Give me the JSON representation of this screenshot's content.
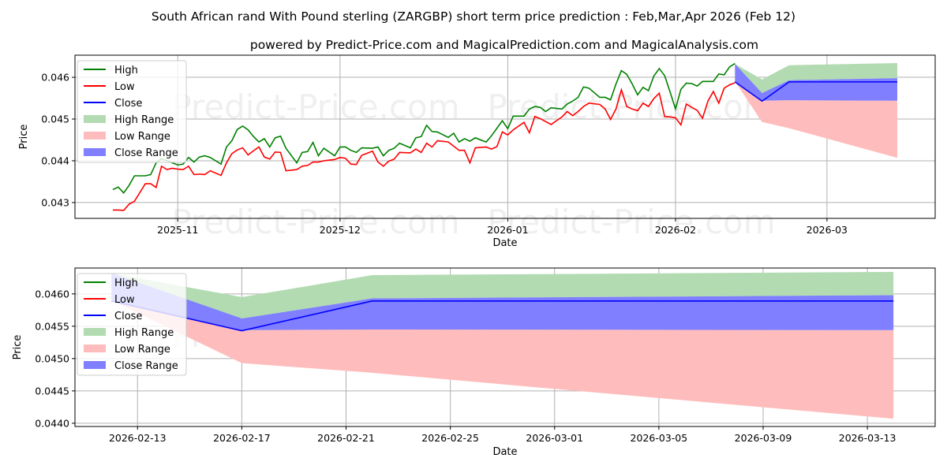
{
  "title": "South African rand With Pound sterling (ZARGBP) short term price prediction : Feb,Mar,Apr 2026 (Feb 12)",
  "subtitle": "powered by Predict-Price.com and MagicalPrediction.com and MagicalAnalysis.com",
  "watermark": "Predict-Price.com",
  "colors": {
    "high": "#008000",
    "low": "#ff0000",
    "close": "#0000ff",
    "high_range": "#b2dbb2",
    "low_range": "#ffbcbc",
    "close_range": "#7f7fff"
  },
  "legend": [
    "High",
    "Low",
    "Close",
    "High Range",
    "Low Range",
    "Close Range"
  ],
  "chart_data": [
    {
      "type": "line",
      "name": "overview",
      "xlabel": "Date",
      "ylabel": "Price",
      "x_unit": "days since 2025-10-20",
      "xlim": [
        -7,
        152
      ],
      "ylim": [
        0.04262,
        0.04653
      ],
      "grid": true,
      "legend_position": "top-left",
      "xticks": [
        {
          "x": 12,
          "label": "2025-11"
        },
        {
          "x": 42,
          "label": "2025-12"
        },
        {
          "x": 73,
          "label": "2026-01"
        },
        {
          "x": 104,
          "label": "2026-02"
        },
        {
          "x": 132,
          "label": "2026-03"
        }
      ],
      "yticks": [
        {
          "y": 0.043,
          "label": "0.043"
        },
        {
          "y": 0.044,
          "label": "0.044"
        },
        {
          "y": 0.045,
          "label": "0.045"
        },
        {
          "y": 0.046,
          "label": "0.046"
        }
      ]
    },
    {
      "type": "line",
      "name": "prediction-detail",
      "xlabel": "Date",
      "ylabel": "Price",
      "x_unit": "days since 2025-10-20",
      "xlim": [
        113.6,
        146.6
      ],
      "ylim": [
        0.04395,
        0.0464
      ],
      "grid": true,
      "legend_position": "top-left",
      "xticks": [
        {
          "x": 116,
          "label": "2026-02-13"
        },
        {
          "x": 120,
          "label": "2026-02-17"
        },
        {
          "x": 124,
          "label": "2026-02-21"
        },
        {
          "x": 128,
          "label": "2026-02-25"
        },
        {
          "x": 132,
          "label": "2026-03-01"
        },
        {
          "x": 136,
          "label": "2026-03-05"
        },
        {
          "x": 140,
          "label": "2026-03-09"
        },
        {
          "x": 144,
          "label": "2026-03-13"
        }
      ],
      "yticks": [
        {
          "y": 0.044,
          "label": "0.0440"
        },
        {
          "y": 0.0445,
          "label": "0.0445"
        },
        {
          "y": 0.045,
          "label": "0.0450"
        },
        {
          "y": 0.0455,
          "label": "0.0455"
        },
        {
          "y": 0.046,
          "label": "0.0460"
        }
      ]
    }
  ],
  "history": {
    "day": [
      0,
      1,
      2,
      3,
      4,
      6,
      7,
      8,
      9,
      10,
      11,
      12,
      13,
      14,
      15,
      16,
      17,
      18,
      20,
      21,
      22,
      23,
      24,
      25,
      26,
      27,
      28,
      29,
      30,
      31,
      32,
      34,
      35,
      36,
      37,
      38,
      39,
      41,
      42,
      43,
      44,
      45,
      46,
      48,
      49,
      50,
      51,
      52,
      53,
      55,
      56,
      57,
      58,
      59,
      60,
      62,
      63,
      64,
      65,
      66,
      67,
      69,
      70,
      71,
      72,
      73,
      74,
      76,
      77,
      78,
      79,
      80,
      81,
      83,
      84,
      85,
      86,
      87,
      88,
      90,
      91,
      92,
      93,
      94,
      95,
      96,
      97,
      98,
      99,
      100,
      101,
      102,
      103,
      104,
      105,
      106,
      107,
      108,
      109,
      110,
      111,
      112,
      113,
      114,
      115
    ],
    "high": [
      0.04331,
      0.04337,
      0.04323,
      0.04341,
      0.04364,
      0.04364,
      0.04367,
      0.04395,
      0.04405,
      0.044,
      0.04395,
      0.0439,
      0.04392,
      0.04408,
      0.04397,
      0.04409,
      0.04412,
      0.04408,
      0.04392,
      0.04433,
      0.04448,
      0.04475,
      0.04483,
      0.04474,
      0.04458,
      0.04445,
      0.04453,
      0.04433,
      0.04455,
      0.04459,
      0.0443,
      0.04395,
      0.0442,
      0.04422,
      0.04444,
      0.04412,
      0.0443,
      0.04412,
      0.04433,
      0.04433,
      0.04425,
      0.0442,
      0.04431,
      0.0443,
      0.04433,
      0.04412,
      0.04425,
      0.0443,
      0.04442,
      0.04431,
      0.04455,
      0.04458,
      0.04485,
      0.0447,
      0.04469,
      0.04456,
      0.04466,
      0.04445,
      0.04453,
      0.04447,
      0.04455,
      0.04445,
      0.0446,
      0.04478,
      0.04496,
      0.04477,
      0.04507,
      0.04507,
      0.04524,
      0.0453,
      0.04528,
      0.04518,
      0.04527,
      0.04524,
      0.04536,
      0.04543,
      0.04552,
      0.04577,
      0.04574,
      0.04552,
      0.04552,
      0.04546,
      0.04584,
      0.04616,
      0.04607,
      0.04584,
      0.04558,
      0.04576,
      0.04568,
      0.04603,
      0.04621,
      0.04604,
      0.04565,
      0.04524,
      0.04571,
      0.04586,
      0.04585,
      0.04579,
      0.0459,
      0.0459,
      0.0459,
      0.04608,
      0.04606,
      0.04625,
      0.04633
    ],
    "low": [
      0.04282,
      0.04282,
      0.04281,
      0.04296,
      0.04303,
      0.04345,
      0.04345,
      0.04336,
      0.04387,
      0.04379,
      0.04382,
      0.0438,
      0.04379,
      0.04387,
      0.04367,
      0.04368,
      0.04367,
      0.04376,
      0.04365,
      0.04395,
      0.04417,
      0.04426,
      0.04431,
      0.04414,
      0.04424,
      0.04433,
      0.04409,
      0.04404,
      0.04421,
      0.0442,
      0.04376,
      0.04379,
      0.04387,
      0.04389,
      0.04397,
      0.04397,
      0.044,
      0.04403,
      0.04408,
      0.04406,
      0.04392,
      0.04391,
      0.04413,
      0.04423,
      0.04397,
      0.04387,
      0.04399,
      0.04404,
      0.0442,
      0.04419,
      0.04428,
      0.0442,
      0.04442,
      0.04433,
      0.04448,
      0.04445,
      0.04435,
      0.04425,
      0.04425,
      0.04395,
      0.04431,
      0.04433,
      0.04428,
      0.04434,
      0.04469,
      0.04462,
      0.04474,
      0.04492,
      0.04467,
      0.04506,
      0.04501,
      0.04494,
      0.04487,
      0.04505,
      0.04518,
      0.04508,
      0.04518,
      0.0453,
      0.04538,
      0.04535,
      0.04524,
      0.04499,
      0.04524,
      0.0457,
      0.0453,
      0.04524,
      0.0452,
      0.04538,
      0.0453,
      0.04549,
      0.04562,
      0.04506,
      0.04505,
      0.04503,
      0.04486,
      0.04536,
      0.04528,
      0.04521,
      0.04502,
      0.04543,
      0.04566,
      0.04538,
      0.04574,
      0.04582,
      0.04587
    ]
  },
  "prediction": {
    "day": [
      115,
      120,
      125,
      145
    ],
    "dates": [
      "2026-02-12",
      "2026-02-17",
      "2026-02-22",
      "2026-03-14"
    ],
    "close": [
      0.04589,
      0.04543,
      0.04589,
      0.04589
    ],
    "close_range_upper": [
      0.04632,
      0.04562,
      0.04593,
      0.04598
    ],
    "close_range_lower": [
      0.04589,
      0.04544,
      0.04545,
      0.04544
    ],
    "high_range_upper": [
      0.04632,
      0.04595,
      0.04629,
      0.04634
    ],
    "high_range_lower": [
      0.0459,
      0.04562,
      0.04593,
      0.04598
    ],
    "low_range_upper": [
      0.0459,
      0.04544,
      0.04545,
      0.04544
    ],
    "low_range_lower": [
      0.0459,
      0.04493,
      0.04478,
      0.04407
    ]
  }
}
